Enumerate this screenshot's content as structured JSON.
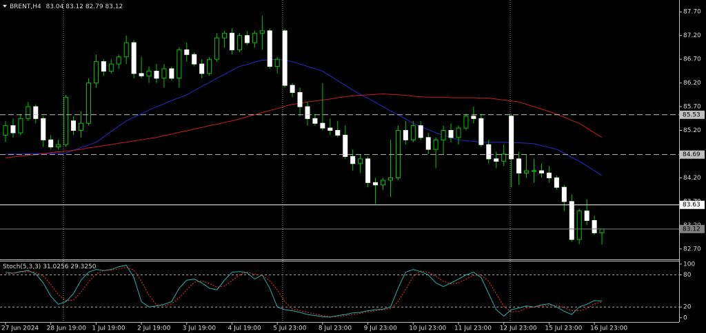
{
  "chart_data": [
    {
      "type": "candlestick",
      "title": "BRENT,H4",
      "categories": [
        "27 Jun 2024",
        null,
        null,
        null,
        null,
        null,
        "28 Jun 19:00",
        null,
        null,
        null,
        null,
        null,
        "1 Jul 19:00",
        null,
        null,
        null,
        null,
        null,
        "2 Jul 19:00",
        null,
        null,
        null,
        null,
        null,
        "3 Jul 19:00",
        null,
        null,
        null,
        null,
        null,
        "4 Jul 19:00",
        null,
        null,
        null,
        null,
        null,
        "5 Jul 23:00",
        null,
        null,
        null,
        null,
        null,
        "8 Jul 23:00",
        null,
        null,
        null,
        null,
        null,
        "9 Jul 23:00",
        null,
        null,
        null,
        null,
        null,
        "10 Jul 23:00",
        null,
        null,
        null,
        null,
        null,
        "11 Jul 23:00",
        null,
        null,
        null,
        null,
        null,
        "12 Jul 23:00",
        null,
        null,
        null,
        null,
        null,
        "15 Jul 23:00",
        null,
        null,
        null,
        null,
        null,
        "16 Jul 23:00",
        null
      ],
      "open": [
        85.1,
        85.3,
        85.15,
        85.45,
        85.7,
        85.45,
        85.0,
        84.85,
        84.9,
        85.4,
        85.2,
        85.35,
        86.2,
        86.65,
        86.45,
        86.6,
        86.75,
        87.05,
        86.4,
        86.35,
        86.45,
        86.3,
        86.5,
        86.3,
        86.9,
        86.8,
        86.6,
        86.4,
        86.7,
        87.15,
        87.25,
        86.9,
        87.2,
        87.05,
        87.25,
        87.3,
        86.55,
        87.3,
        86.15,
        86.0,
        85.7,
        85.45,
        85.35,
        85.25,
        85.2,
        85.1,
        84.65,
        84.5,
        84.6,
        84.1,
        84.05,
        84.15,
        84.2,
        85.2,
        85.0,
        85.3,
        85.05,
        84.8,
        85.0,
        85.2,
        85.05,
        85.25,
        85.5,
        85.45,
        84.9,
        84.6,
        84.55,
        85.5,
        84.6,
        84.3,
        84.35,
        84.35,
        84.3,
        84.2,
        84.0,
        83.7,
        82.9,
        83.5,
        83.3,
        83.04
      ],
      "high": [
        85.4,
        85.45,
        85.55,
        85.8,
        85.75,
        85.5,
        85.1,
        85.0,
        85.95,
        85.5,
        85.6,
        86.3,
        86.8,
        86.7,
        86.7,
        86.8,
        87.2,
        87.1,
        86.75,
        86.55,
        86.6,
        86.6,
        86.55,
        86.95,
        87.05,
        86.85,
        86.7,
        86.75,
        87.25,
        87.3,
        87.35,
        87.25,
        87.3,
        87.3,
        87.62,
        87.35,
        86.75,
        87.35,
        86.2,
        86.1,
        85.8,
        85.55,
        86.2,
        85.45,
        85.4,
        85.3,
        84.8,
        84.7,
        84.65,
        84.2,
        84.2,
        85.0,
        85.3,
        85.4,
        85.4,
        85.4,
        85.15,
        85.05,
        85.3,
        85.35,
        85.3,
        85.55,
        85.7,
        85.55,
        85.0,
        84.75,
        84.9,
        85.55,
        84.75,
        84.7,
        84.6,
        84.5,
        84.45,
        84.25,
        84.05,
        83.85,
        83.55,
        83.75,
        83.4,
        83.12
      ],
      "low": [
        84.95,
        85.05,
        85.1,
        85.4,
        85.35,
        84.85,
        84.8,
        84.8,
        84.85,
        85.1,
        85.05,
        85.3,
        86.1,
        86.35,
        86.4,
        86.5,
        86.6,
        86.3,
        86.3,
        86.2,
        86.2,
        86.1,
        86.25,
        86.1,
        86.65,
        86.55,
        86.3,
        86.35,
        86.65,
        86.95,
        86.8,
        86.85,
        87.0,
        86.95,
        86.9,
        86.5,
        86.4,
        86.1,
        85.9,
        85.5,
        85.3,
        85.3,
        85.2,
        85.1,
        85.05,
        84.6,
        84.35,
        84.3,
        84.0,
        83.65,
        83.95,
        83.8,
        84.15,
        84.9,
        84.95,
        85.0,
        84.7,
        84.4,
        84.7,
        84.95,
        84.9,
        85.2,
        85.35,
        84.85,
        84.5,
        84.4,
        84.45,
        84.0,
        84.05,
        84.2,
        84.1,
        84.2,
        84.1,
        83.95,
        83.5,
        82.85,
        82.8,
        83.2,
        83.0,
        82.79
      ],
      "close": [
        85.3,
        85.15,
        85.45,
        85.7,
        85.45,
        85.0,
        84.85,
        84.9,
        85.9,
        85.2,
        85.35,
        86.2,
        86.65,
        86.45,
        86.6,
        86.75,
        87.05,
        86.4,
        86.35,
        86.45,
        86.3,
        86.5,
        86.3,
        86.9,
        86.8,
        86.6,
        86.4,
        86.7,
        87.15,
        87.25,
        86.9,
        87.2,
        87.05,
        87.25,
        87.3,
        86.55,
        86.7,
        86.15,
        86.0,
        85.7,
        85.45,
        85.35,
        85.25,
        85.2,
        85.1,
        84.65,
        84.5,
        84.6,
        84.1,
        84.05,
        84.15,
        84.2,
        85.2,
        85.0,
        85.3,
        85.05,
        84.8,
        85.0,
        85.2,
        85.05,
        85.25,
        85.5,
        85.45,
        84.9,
        84.6,
        84.55,
        84.7,
        84.6,
        84.3,
        84.35,
        84.35,
        84.3,
        84.2,
        84.0,
        83.7,
        82.9,
        83.5,
        83.3,
        83.04,
        83.12
      ],
      "up_color": "#00c800",
      "down_color": "#ffffff",
      "wick_color": "#00c800",
      "overlays": [
        {
          "color": "#2828c8",
          "values": [
            84.7,
            84.7,
            84.7,
            84.71,
            84.71,
            84.71,
            84.71,
            84.72,
            84.72,
            84.78,
            84.84,
            84.89,
            84.95,
            85.06,
            85.18,
            85.29,
            85.4,
            85.48,
            85.55,
            85.63,
            85.7,
            85.76,
            85.83,
            85.89,
            85.95,
            86.04,
            86.13,
            86.21,
            86.3,
            86.38,
            86.47,
            86.55,
            86.59,
            86.64,
            86.68,
            86.69,
            86.7,
            86.68,
            86.65,
            86.6,
            86.55,
            86.5,
            86.45,
            86.35,
            86.25,
            86.15,
            86.05,
            85.96,
            85.88,
            85.79,
            85.7,
            85.61,
            85.53,
            85.44,
            85.35,
            85.28,
            85.22,
            85.15,
            85.1,
            85.05,
            85.0,
            84.98,
            84.97,
            84.95,
            84.95,
            84.95,
            84.95,
            84.94,
            84.94,
            84.93,
            84.92,
            84.88,
            84.84,
            84.8,
            84.72,
            84.63,
            84.55,
            84.45,
            84.35,
            84.25
          ]
        },
        {
          "color": "#c81e1e",
          "values": [
            84.62,
            84.64,
            84.66,
            84.67,
            84.69,
            84.71,
            84.73,
            84.75,
            84.76,
            84.78,
            84.8,
            84.83,
            84.85,
            84.88,
            84.9,
            84.93,
            84.95,
            84.98,
            85.0,
            85.03,
            85.05,
            85.09,
            85.12,
            85.16,
            85.19,
            85.23,
            85.26,
            85.3,
            85.33,
            85.37,
            85.4,
            85.44,
            85.49,
            85.53,
            85.58,
            85.62,
            85.66,
            85.71,
            85.75,
            85.77,
            85.8,
            85.82,
            85.84,
            85.86,
            85.89,
            85.91,
            85.93,
            85.94,
            85.95,
            85.96,
            85.97,
            85.96,
            85.95,
            85.94,
            85.92,
            85.91,
            85.9,
            85.9,
            85.9,
            85.89,
            85.89,
            85.89,
            85.89,
            85.88,
            85.88,
            85.86,
            85.84,
            85.82,
            85.8,
            85.75,
            85.7,
            85.65,
            85.6,
            85.54,
            85.48,
            85.41,
            85.35,
            85.25,
            85.15,
            85.05
          ]
        }
      ],
      "price_lines": [
        {
          "value": 85.53,
          "color": "#c0c0c0",
          "dash": true
        },
        {
          "value": 84.69,
          "color": "#c0c0c0",
          "dash": true
        },
        {
          "value": 83.63,
          "color": "#ffffff",
          "dash": false
        },
        {
          "value": 83.12,
          "color": "#808080",
          "dash": false
        }
      ],
      "ylim": [
        82.48,
        87.95
      ],
      "yticks": [
        {
          "value": 87.7,
          "label": "87.70"
        },
        {
          "value": 87.2,
          "label": "87.20"
        },
        {
          "value": 86.7,
          "label": "86.70"
        },
        {
          "value": 86.2,
          "label": "86.20"
        },
        {
          "value": 85.7,
          "label": "85.70"
        },
        {
          "value": 85.2,
          "label": "85.20"
        },
        {
          "value": 84.7,
          "label": "84.70"
        },
        {
          "value": 84.2,
          "label": "84.20"
        },
        {
          "value": 83.7,
          "label": "83.70"
        },
        {
          "value": 83.2,
          "label": "83.20"
        },
        {
          "value": 82.7,
          "label": "82.70"
        }
      ]
    },
    {
      "type": "stochastic",
      "title": "Stoch(5,3,3)",
      "series": [
        {
          "color": "#20b2aa",
          "dotted": false,
          "values": [
            85,
            83,
            86,
            88,
            82,
            65,
            40,
            25,
            30,
            45,
            70,
            85,
            90,
            88,
            90,
            95,
            98,
            75,
            30,
            20,
            22,
            25,
            30,
            55,
            70,
            72,
            65,
            55,
            52,
            70,
            85,
            86,
            84,
            72,
            80,
            55,
            20,
            15,
            13,
            10,
            6,
            4,
            2,
            1,
            4,
            6,
            9,
            10,
            13,
            15,
            16,
            20,
            55,
            85,
            90,
            86,
            80,
            65,
            58,
            65,
            72,
            80,
            85,
            75,
            45,
            15,
            3,
            15,
            18,
            22,
            20,
            24,
            26,
            20,
            12,
            6,
            20,
            25,
            32,
            31.0256
          ]
        },
        {
          "color": "#ff3030",
          "dotted": true,
          "values": [
            82,
            83,
            85,
            86,
            85,
            78,
            62,
            43,
            32,
            33,
            48,
            67,
            82,
            88,
            89,
            91,
            94,
            89,
            68,
            42,
            24,
            22,
            26,
            37,
            52,
            66,
            69,
            64,
            57,
            59,
            69,
            80,
            85,
            81,
            79,
            69,
            52,
            30,
            16,
            13,
            10,
            7,
            4,
            2,
            2,
            4,
            6,
            8,
            11,
            13,
            15,
            17,
            30,
            53,
            77,
            87,
            85,
            77,
            68,
            63,
            65,
            72,
            79,
            80,
            68,
            45,
            21,
            11,
            12,
            18,
            20,
            22,
            23,
            23,
            19,
            13,
            13,
            17,
            26,
            29.325
          ],
          "value_labels": [
            null,
            null,
            null,
            null,
            null,
            null,
            null,
            null,
            null,
            null,
            null,
            null,
            null,
            null,
            null,
            null,
            null,
            null,
            null,
            null,
            null,
            null,
            null,
            null,
            null,
            null,
            null,
            null,
            null,
            null,
            null,
            null,
            null,
            null,
            null,
            null,
            null,
            null,
            null,
            null,
            null,
            null,
            null,
            null,
            null,
            null,
            null,
            null,
            null,
            null,
            null,
            null,
            null,
            null,
            null,
            null,
            null,
            null,
            null,
            null,
            null,
            null,
            null,
            null,
            null,
            null,
            null,
            null,
            null,
            null,
            null,
            null,
            null,
            null,
            null,
            null,
            null,
            null,
            null,
            "29.3250"
          ]
        }
      ],
      "levels": [
        80,
        20
      ],
      "ylim": [
        -8,
        105
      ],
      "yticks": [
        100,
        80,
        20,
        0
      ]
    }
  ]
}
